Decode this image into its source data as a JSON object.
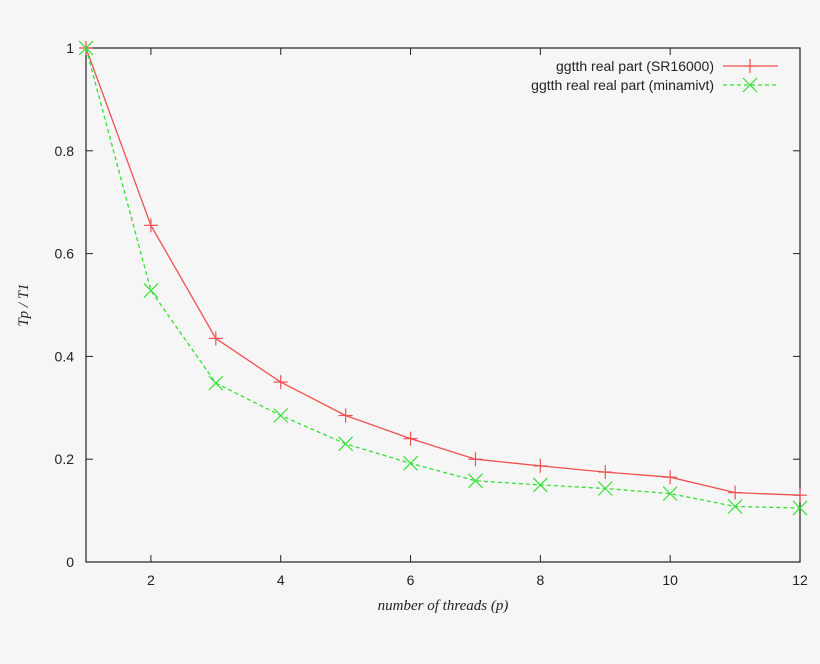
{
  "chart_data": {
    "type": "line",
    "title": "",
    "xlabel": "number of threads (p)",
    "ylabel": "Tp / T1",
    "xlim": [
      1,
      12
    ],
    "ylim": [
      0,
      1
    ],
    "xticks": [
      2,
      4,
      6,
      8,
      10,
      12
    ],
    "yticks": [
      0,
      0.2,
      0.4,
      0.6,
      0.8,
      1
    ],
    "xtick_labels": [
      "2",
      "4",
      "6",
      "8",
      "10",
      "12"
    ],
    "ytick_labels": [
      "0",
      "0.2",
      "0.4",
      "0.6",
      "0.8",
      "1"
    ],
    "grid": false,
    "legend_position": "top-right",
    "series": [
      {
        "name": "ggtth real part (SR16000)",
        "color": "#f05050",
        "line_style": "solid",
        "marker": "plus",
        "x": [
          1,
          2,
          3,
          4,
          5,
          6,
          7,
          8,
          9,
          10,
          11,
          12
        ],
        "y": [
          1.0,
          0.655,
          0.435,
          0.35,
          0.285,
          0.24,
          0.2,
          0.187,
          0.175,
          0.165,
          0.135,
          0.13
        ]
      },
      {
        "name": "ggtth real real part (minamivt)",
        "color": "#33e033",
        "line_style": "dashed",
        "marker": "cross",
        "x": [
          1,
          2,
          3,
          4,
          5,
          6,
          7,
          8,
          9,
          10,
          11,
          12
        ],
        "y": [
          1.0,
          0.528,
          0.348,
          0.285,
          0.23,
          0.192,
          0.158,
          0.15,
          0.143,
          0.133,
          0.108,
          0.105
        ]
      }
    ]
  }
}
